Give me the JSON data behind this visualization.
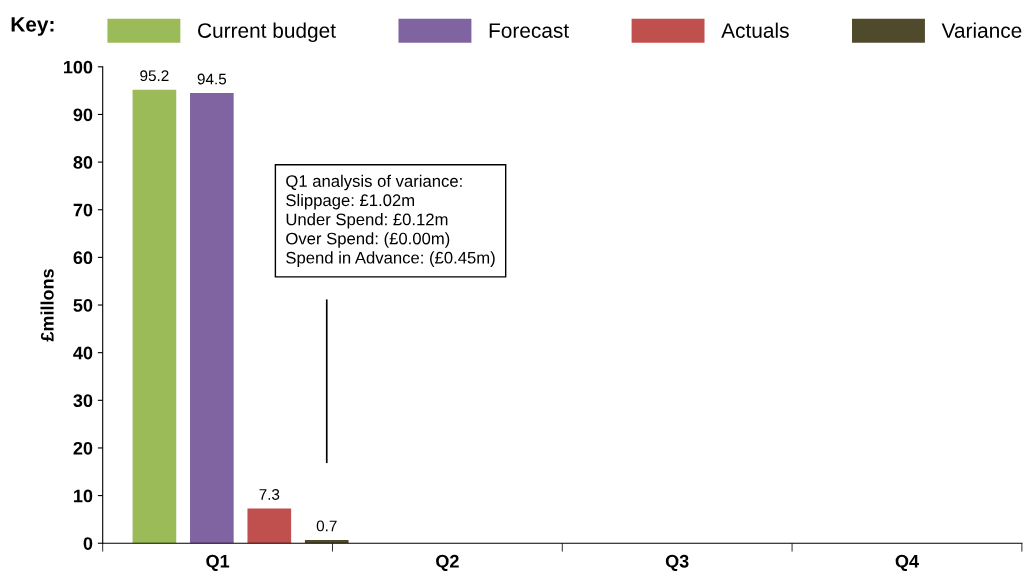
{
  "chart_data": {
    "type": "bar",
    "ylabel": "£millons",
    "legend_title": "Key:",
    "legend": "top",
    "categories": [
      "Q1",
      "Q2",
      "Q3",
      "Q4"
    ],
    "series": [
      {
        "name": "Current budget",
        "color": "#9bbb59",
        "values": [
          95.2,
          null,
          null,
          null
        ]
      },
      {
        "name": "Forecast",
        "color": "#8064a2",
        "values": [
          94.5,
          null,
          null,
          null
        ]
      },
      {
        "name": "Actuals",
        "color": "#c0504d",
        "values": [
          7.3,
          null,
          null,
          null
        ]
      },
      {
        "name": "Variance",
        "color": "#4f4a2c",
        "values": [
          0.7,
          null,
          null,
          null
        ]
      }
    ],
    "ylim": [
      0,
      100
    ],
    "yticks": [
      0,
      10,
      20,
      30,
      40,
      50,
      60,
      70,
      80,
      90,
      100
    ],
    "grid": false,
    "data_labels": true,
    "annotations": [
      "Q1 analysis of variance:",
      "Slippage: £1.02m",
      "Under Spend: £0.12m",
      "Over Spend: (£0.00m)",
      "Spend in Advance: (£0.45m)"
    ]
  }
}
